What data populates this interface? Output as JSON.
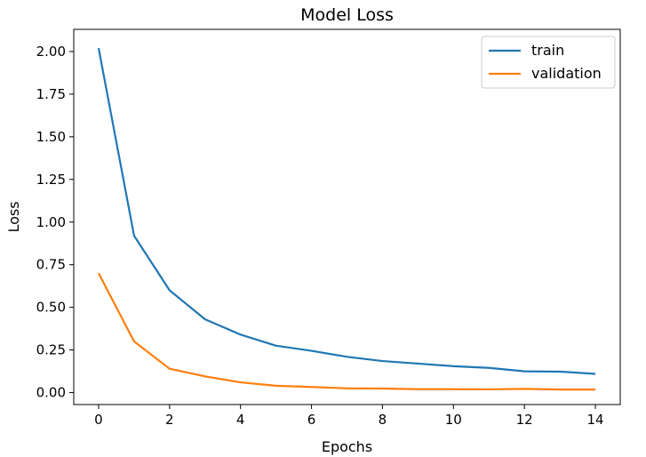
{
  "chart_data": {
    "type": "line",
    "title": "Model Loss",
    "xlabel": "Epochs",
    "ylabel": "Loss",
    "x": [
      0,
      1,
      2,
      3,
      4,
      5,
      6,
      7,
      8,
      9,
      10,
      11,
      12,
      13,
      14
    ],
    "xlim": [
      -0.7,
      14.7
    ],
    "ylim": [
      -0.07,
      2.13
    ],
    "xticks": [
      0,
      2,
      4,
      6,
      8,
      10,
      12,
      14
    ],
    "xtick_labels": [
      "0",
      "2",
      "4",
      "6",
      "8",
      "10",
      "12",
      "14"
    ],
    "yticks": [
      0,
      0.25,
      0.5,
      0.75,
      1.0,
      1.25,
      1.5,
      1.75,
      2.0
    ],
    "ytick_labels": [
      "0.00",
      "0.25",
      "0.50",
      "0.75",
      "1.00",
      "1.25",
      "1.50",
      "1.75",
      "2.00"
    ],
    "grid": false,
    "legend_position": "top-right",
    "series": [
      {
        "name": "train",
        "color": "#1f77b4",
        "values": [
          2.02,
          0.92,
          0.6,
          0.43,
          0.34,
          0.275,
          0.245,
          0.21,
          0.185,
          0.17,
          0.155,
          0.145,
          0.125,
          0.123,
          0.11
        ]
      },
      {
        "name": "validation",
        "color": "#ff7f0e",
        "values": [
          0.7,
          0.3,
          0.14,
          0.095,
          0.06,
          0.04,
          0.033,
          0.025,
          0.024,
          0.02,
          0.02,
          0.019,
          0.022,
          0.018,
          0.018
        ]
      }
    ]
  }
}
